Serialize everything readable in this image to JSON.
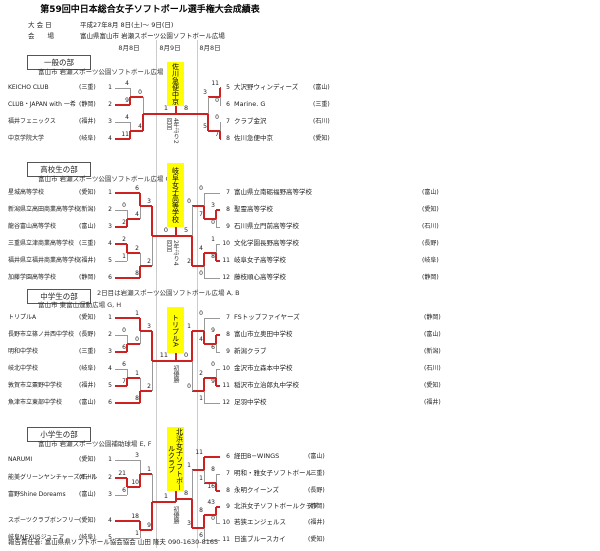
{
  "header": {
    "title": "第59回中日本総合女子ソフトボール選手権大会成績表",
    "meta": [
      {
        "label": "大 会 日",
        "value": "平成27年8月 8日(土)～ 9日(日)"
      },
      {
        "label": "会　　場",
        "value": "富山県富山市 岩瀬スポーツ公園ソフトボール広場"
      }
    ],
    "date_columns": [
      "8月8日",
      "8月9日",
      "8月8日"
    ]
  },
  "footer": {
    "text": "報告責任者: 富山県県ソフトボール協会協会 山田 隆夫 090-1630-8165"
  },
  "colors": {
    "highlight": "#ffff00",
    "winner": "#cc2222",
    "line": "#999999"
  },
  "sections": [
    {
      "name": "一般の部",
      "venues": [
        "富山市 岩瀬スポーツ公園ソフトボール広場"
      ],
      "left_teams": [
        {
          "seed": "1",
          "name": "KEICHO CLUB",
          "pref": "三重"
        },
        {
          "seed": "2",
          "name": "CLUB・JAPAN with 一希",
          "pref": "静岡"
        },
        {
          "seed": "3",
          "name": "福井フェニックス",
          "pref": "福井"
        },
        {
          "seed": "4",
          "name": "中京学院大学",
          "pref": "岐阜"
        }
      ],
      "right_teams": [
        {
          "seed": "5",
          "name": "大沢野ウィンディーズ",
          "pref": "富山"
        },
        {
          "seed": "6",
          "name": "Marine. G",
          "pref": "三重"
        },
        {
          "seed": "7",
          "name": "クラブ金沢",
          "pref": "石川"
        },
        {
          "seed": "8",
          "name": "佐川急便中京",
          "pref": "愛知"
        }
      ],
      "left_matches": [
        {
          "round": 1,
          "top": {
            "team": 0
          },
          "bottom": {
            "team": 1
          },
          "scores": [
            "4",
            "9"
          ]
        },
        {
          "round": 1,
          "top": {
            "team": 2
          },
          "bottom": {
            "team": 3
          },
          "scores": [
            "4",
            "11"
          ]
        },
        {
          "round": 2,
          "top": {
            "match": 0
          },
          "bottom": {
            "match": 1
          },
          "scores": [
            "0",
            "4"
          ]
        }
      ],
      "right_matches": [
        {
          "round": 1,
          "top": {
            "team": 0
          },
          "bottom": {
            "team": 1
          },
          "scores": [
            "11",
            "0"
          ]
        },
        {
          "round": 1,
          "top": {
            "team": 2
          },
          "bottom": {
            "team": 3
          },
          "scores": [
            "0",
            "7"
          ]
        },
        {
          "round": 2,
          "top": {
            "match": 0
          },
          "bottom": {
            "match": 1
          },
          "scores": [
            "3",
            "5"
          ]
        }
      ],
      "final_scores": [
        "1",
        "8"
      ],
      "champion": "佐川急便中京",
      "champion_note": "4年ぶり2回目"
    },
    {
      "name": "高校生の部",
      "venues": [
        "富山市 岩瀬スポーツ公園ソフトボール広場 C, D"
      ],
      "left_teams": [
        {
          "seed": "1",
          "name": "星城高等学校",
          "pref": "愛知"
        },
        {
          "seed": "2",
          "name": "新潟県立高田商業高等学校",
          "pref": "新潟"
        },
        {
          "seed": "3",
          "name": "龍谷富山高等学校",
          "pref": "富山"
        },
        {
          "seed": "4",
          "name": "三重県立津商業高等学校",
          "pref": "三重"
        },
        {
          "seed": "5",
          "name": "福井県立福井商業高等学校",
          "pref": "福井"
        },
        {
          "seed": "6",
          "name": "加藤学園高等学校",
          "pref": "静岡"
        }
      ],
      "right_teams": [
        {
          "seed": "7",
          "name": "富山県立南砺福野高等学校",
          "pref": "富山"
        },
        {
          "seed": "8",
          "name": "聖霊高等学校",
          "pref": "愛知"
        },
        {
          "seed": "9",
          "name": "石川県立門前高等学校",
          "pref": "石川"
        },
        {
          "seed": "10",
          "name": "文化学園長野高等学校",
          "pref": "長野"
        },
        {
          "seed": "11",
          "name": "岐阜女子高等学校",
          "pref": "岐阜"
        },
        {
          "seed": "12",
          "name": "藤枝順心高等学校",
          "pref": "静岡"
        }
      ],
      "left_matches": [
        {
          "round": 1,
          "top": {
            "team": 1
          },
          "bottom": {
            "team": 2
          },
          "scores": [
            "0",
            "2"
          ]
        },
        {
          "round": 1,
          "top": {
            "team": 3
          },
          "bottom": {
            "team": 4
          },
          "scores": [
            "2",
            "1"
          ]
        },
        {
          "round": 2,
          "top": {
            "team": 0
          },
          "bottom": {
            "match": 0
          },
          "scores": [
            "6",
            "4"
          ]
        },
        {
          "round": 2,
          "top": {
            "match": 1
          },
          "bottom": {
            "team": 5
          },
          "scores": [
            "2",
            "8"
          ]
        },
        {
          "round": 3,
          "top": {
            "match": 2
          },
          "bottom": {
            "match": 3
          },
          "scores": [
            "3",
            "2"
          ]
        }
      ],
      "right_matches": [
        {
          "round": 1,
          "top": {
            "team": 1
          },
          "bottom": {
            "team": 2
          },
          "scores": [
            "3",
            "0"
          ]
        },
        {
          "round": 1,
          "top": {
            "team": 3
          },
          "bottom": {
            "team": 4
          },
          "scores": [
            "1",
            "8"
          ]
        },
        {
          "round": 2,
          "top": {
            "team": 0
          },
          "bottom": {
            "match": 0
          },
          "scores": [
            "0",
            "7"
          ]
        },
        {
          "round": 2,
          "top": {
            "match": 1
          },
          "bottom": {
            "team": 5
          },
          "scores": [
            "4",
            "0"
          ]
        },
        {
          "round": 3,
          "top": {
            "match": 2
          },
          "bottom": {
            "match": 3
          },
          "scores": [
            "0",
            "2"
          ]
        }
      ],
      "final_scores": [
        "0",
        "5"
      ],
      "champion": "岐阜女子高等学校",
      "champion_note": "2年ぶり4回目"
    },
    {
      "name": "中学生の部",
      "venues": [
        "2日目は岩瀬スポーツ公園ソフトボール広場 A, B",
        "富山市 東富山運動広場 G, H"
      ],
      "left_teams": [
        {
          "seed": "1",
          "name": "トリプルA",
          "pref": "愛知"
        },
        {
          "seed": "2",
          "name": "長野市立篠ノ井西中学校",
          "pref": "長野"
        },
        {
          "seed": "3",
          "name": "明和中学校",
          "pref": "三重"
        },
        {
          "seed": "4",
          "name": "岐北中学校",
          "pref": "岐阜"
        },
        {
          "seed": "5",
          "name": "敦賀市立粟野中学校",
          "pref": "福井"
        },
        {
          "seed": "6",
          "name": "魚津市立東部中学校",
          "pref": "富山"
        }
      ],
      "right_teams": [
        {
          "seed": "7",
          "name": "FSトップファイヤーズ",
          "pref": "静岡"
        },
        {
          "seed": "8",
          "name": "富山市立奥田中学校",
          "pref": "富山"
        },
        {
          "seed": "9",
          "name": "新潟クラブ",
          "pref": "新潟"
        },
        {
          "seed": "10",
          "name": "金沢市立森本中学校",
          "pref": "石川"
        },
        {
          "seed": "11",
          "name": "稲沢市立治郎丸中学校",
          "pref": "愛知"
        },
        {
          "seed": "12",
          "name": "足羽中学校",
          "pref": "福井"
        }
      ],
      "left_matches": [
        {
          "round": 1,
          "top": {
            "team": 1
          },
          "bottom": {
            "team": 2
          },
          "scores": [
            "0",
            "6"
          ]
        },
        {
          "round": 1,
          "top": {
            "team": 3
          },
          "bottom": {
            "team": 4
          },
          "scores": [
            "6",
            "7"
          ]
        },
        {
          "round": 2,
          "top": {
            "team": 0
          },
          "bottom": {
            "match": 0
          },
          "scores": [
            "1",
            "0"
          ]
        },
        {
          "round": 2,
          "top": {
            "match": 1
          },
          "bottom": {
            "team": 5
          },
          "scores": [
            "1",
            "8"
          ]
        },
        {
          "round": 3,
          "top": {
            "match": 2
          },
          "bottom": {
            "match": 3
          },
          "scores": [
            "3",
            "2"
          ]
        }
      ],
      "right_matches": [
        {
          "round": 1,
          "top": {
            "team": 1
          },
          "bottom": {
            "team": 2
          },
          "scores": [
            "9",
            "6"
          ]
        },
        {
          "round": 1,
          "top": {
            "team": 3
          },
          "bottom": {
            "team": 4
          },
          "scores": [
            "0",
            "9"
          ]
        },
        {
          "round": 2,
          "top": {
            "team": 0
          },
          "bottom": {
            "match": 0
          },
          "scores": [
            "0",
            "4"
          ]
        },
        {
          "round": 2,
          "top": {
            "match": 1
          },
          "bottom": {
            "team": 5
          },
          "scores": [
            "2",
            "1"
          ]
        },
        {
          "round": 3,
          "top": {
            "match": 2
          },
          "bottom": {
            "match": 3
          },
          "scores": [
            "1",
            "0"
          ]
        }
      ],
      "final_scores": [
        "11",
        "0"
      ],
      "champion": "トリプルA",
      "champion_note": "初優勝"
    },
    {
      "name": "小学生の部",
      "venues": [
        "富山市 岩瀬スポーツ公園補助球場 E, F"
      ],
      "left_teams": [
        {
          "seed": "1",
          "name": "NARUMI",
          "pref": "愛知"
        },
        {
          "seed": "2",
          "name": "能美グリーンヤンチャーズガール",
          "pref": "石川"
        },
        {
          "seed": "3",
          "name": "富野Shine Doreams",
          "pref": "富山"
        },
        {
          "seed": "4",
          "name": "スポーツクラブボンフリー",
          "pref": "愛知"
        },
        {
          "seed": "5",
          "name": "岐阜NEXUSジュニア",
          "pref": "岐阜"
        }
      ],
      "right_teams": [
        {
          "seed": "6",
          "name": "経田B−WINGS",
          "pref": "富山"
        },
        {
          "seed": "7",
          "name": "明和・雅女子ソフトボール",
          "pref": "三重"
        },
        {
          "seed": "8",
          "name": "永明クイーンズ",
          "pref": "長野"
        },
        {
          "seed": "9",
          "name": "北浜女子ソフトボールクラブ",
          "pref": "静岡"
        },
        {
          "seed": "10",
          "name": "若狭エンジェルス",
          "pref": "福井"
        },
        {
          "seed": "11",
          "name": "日進ブルースカイ",
          "pref": "愛知"
        }
      ],
      "left_matches": [
        {
          "round": 1,
          "top": {
            "team": 1
          },
          "bottom": {
            "team": 2
          },
          "scores": [
            "21",
            "6"
          ]
        },
        {
          "round": 2,
          "top": {
            "team": 0
          },
          "bottom": {
            "match": 0
          },
          "scores": [
            "3",
            "10"
          ]
        },
        {
          "round": 2,
          "top": {
            "team": 3
          },
          "bottom": {
            "team": 4
          },
          "scores": [
            "18",
            "1"
          ]
        },
        {
          "round": 3,
          "top": {
            "match": 1
          },
          "bottom": {
            "match": 2
          },
          "scores": [
            "1",
            "9"
          ]
        }
      ],
      "right_matches": [
        {
          "round": 1,
          "top": {
            "team": 1
          },
          "bottom": {
            "team": 2
          },
          "scores": [
            "8",
            "16"
          ]
        },
        {
          "round": 1,
          "top": {
            "team": 3
          },
          "bottom": {
            "team": 4
          },
          "scores": [
            "43",
            "0"
          ]
        },
        {
          "round": 2,
          "top": {
            "team": 0
          },
          "bottom": {
            "match": 0
          },
          "scores": [
            "11",
            "1"
          ]
        },
        {
          "round": 2,
          "top": {
            "match": 1
          },
          "bottom": {
            "team": 5
          },
          "scores": [
            "8",
            "6"
          ]
        },
        {
          "round": 3,
          "top": {
            "match": 2
          },
          "bottom": {
            "match": 3
          },
          "scores": [
            "1",
            "3"
          ]
        }
      ],
      "final_scores": [
        "1",
        "8"
      ],
      "champion": "北浜女子ソフトボールクラブ",
      "champion_note": "初優勝"
    }
  ]
}
